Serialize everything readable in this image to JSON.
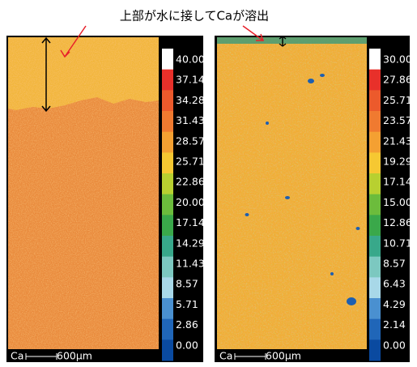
{
  "annotation": "上部が水に接してCaが溶出",
  "panels": [
    {
      "colorbar_labels": [
        "40.00",
        "37.14",
        "34.28",
        "31.43",
        "28.57",
        "25.71",
        "22.86",
        "20.00",
        "17.14",
        "14.29",
        "11.43",
        "8.57",
        "5.71",
        "2.86",
        "0.00"
      ],
      "element": "Ca",
      "scale_length": "600μm"
    },
    {
      "colorbar_labels": [
        "30.00",
        "27.86",
        "25.71",
        "23.57",
        "21.43",
        "19.29",
        "17.14",
        "15.00",
        "12.86",
        "10.71",
        "8.57",
        "6.43",
        "4.29",
        "2.14",
        "0.00"
      ],
      "element": "Ca",
      "scale_length": "600μm"
    }
  ]
}
